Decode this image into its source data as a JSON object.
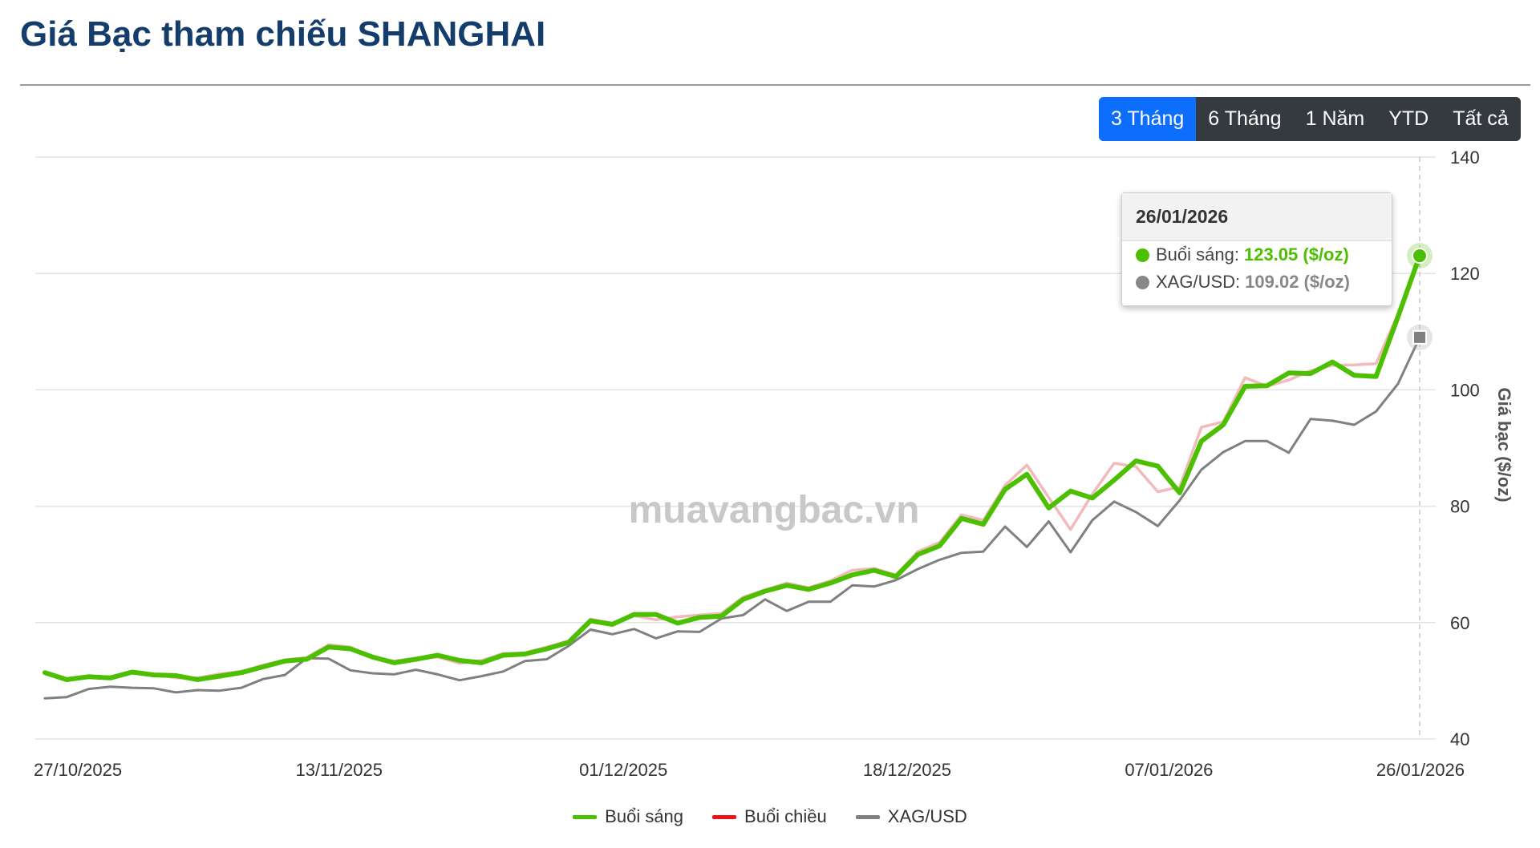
{
  "header": {
    "title": "Giá Bạc tham chiếu SHANGHAI"
  },
  "range_selector": {
    "buttons": [
      {
        "label": "3 Tháng",
        "active": true
      },
      {
        "label": "6 Tháng",
        "active": false
      },
      {
        "label": "1 Năm",
        "active": false
      },
      {
        "label": "YTD",
        "active": false
      },
      {
        "label": "Tất cả",
        "active": false
      }
    ]
  },
  "watermark": "muavangbac.vn",
  "tooltip": {
    "date": "26/01/2026",
    "rows": [
      {
        "label": "Buổi sáng",
        "value": "123.05 ($/oz)",
        "color": "#4bbf00"
      },
      {
        "label": "XAG/USD",
        "value": "109.02 ($/oz)",
        "color": "#888888"
      }
    ]
  },
  "colors": {
    "morning": "#4bbf00",
    "afternoon": "#f1b2b2",
    "xag": "#808080",
    "title": "#143d6b",
    "active_button": "#0d6efd",
    "button_bar": "#343a40"
  },
  "chart_data": {
    "type": "line",
    "ylabel": "Giá bạc ($/oz)",
    "xlabel": "",
    "ylim": [
      40,
      140
    ],
    "y_ticks": [
      40,
      60,
      80,
      100,
      120,
      140
    ],
    "x_tick_labels": [
      "27/10/2025",
      "13/11/2025",
      "01/12/2025",
      "18/12/2025",
      "07/01/2026",
      "26/01/2026"
    ],
    "x_tick_indices": [
      0,
      12,
      25,
      38,
      50,
      63
    ],
    "grid": true,
    "legend_position": "bottom-center",
    "series": [
      {
        "name": "Buổi sáng",
        "color": "#4bbf00",
        "values": [
          51.4,
          50.2,
          50.7,
          50.5,
          51.5,
          51.0,
          50.9,
          50.2,
          50.8,
          51.4,
          52.4,
          53.4,
          53.7,
          55.8,
          55.5,
          54.1,
          53.1,
          53.7,
          54.4,
          53.5,
          53.1,
          54.4,
          54.6,
          55.5,
          56.6,
          60.3,
          59.7,
          61.4,
          61.4,
          59.9,
          60.9,
          61.1,
          64.0,
          65.4,
          66.4,
          65.7,
          66.8,
          68.2,
          69.0,
          67.9,
          71.7,
          73.2,
          77.9,
          76.9,
          82.9,
          85.5,
          79.7,
          82.6,
          81.4,
          84.5,
          87.8,
          86.9,
          82.3,
          91.2,
          94.0,
          100.6,
          100.7,
          102.9,
          102.8,
          104.8,
          102.5,
          102.3,
          112.5,
          123.05
        ]
      },
      {
        "name": "Buổi chiều",
        "color": "#e8141b",
        "values": [
          51.2,
          50.0,
          50.6,
          50.7,
          51.3,
          51.1,
          50.5,
          50.5,
          51.2,
          51.6,
          52.7,
          53.6,
          54.0,
          56.2,
          55.8,
          54.0,
          53.4,
          53.9,
          54.1,
          53.0,
          53.5,
          54.7,
          54.8,
          55.8,
          56.9,
          60.6,
          59.9,
          61.2,
          60.5,
          61.0,
          61.3,
          61.6,
          64.4,
          65.6,
          66.8,
          66.0,
          67.2,
          69.0,
          69.3,
          68.2,
          72.2,
          73.8,
          78.5,
          77.6,
          83.6,
          87.1,
          81.5,
          76.0,
          82.1,
          87.4,
          86.8,
          82.5,
          83.3,
          93.6,
          94.5,
          102.1,
          100.6,
          101.7,
          103.3,
          104.2,
          104.3,
          104.5,
          113.0
        ]
      },
      {
        "name": "XAG/USD",
        "color": "#808080",
        "values": [
          47.0,
          47.2,
          48.6,
          49.0,
          48.8,
          48.7,
          48.0,
          48.4,
          48.3,
          48.8,
          50.3,
          51.0,
          53.9,
          53.8,
          51.8,
          51.3,
          51.1,
          51.9,
          51.1,
          50.1,
          50.8,
          51.6,
          53.4,
          53.7,
          56.0,
          58.8,
          58.0,
          58.9,
          57.3,
          58.5,
          58.4,
          60.7,
          61.3,
          64.0,
          62.0,
          63.6,
          63.6,
          66.4,
          66.2,
          67.3,
          69.2,
          70.8,
          72.0,
          72.2,
          76.5,
          73.0,
          77.4,
          72.1,
          77.6,
          80.8,
          79.0,
          76.6,
          81.0,
          86.3,
          89.3,
          91.2,
          91.2,
          89.2,
          95.0,
          94.7,
          94.0,
          96.3,
          101.0,
          109.02
        ]
      }
    ]
  }
}
